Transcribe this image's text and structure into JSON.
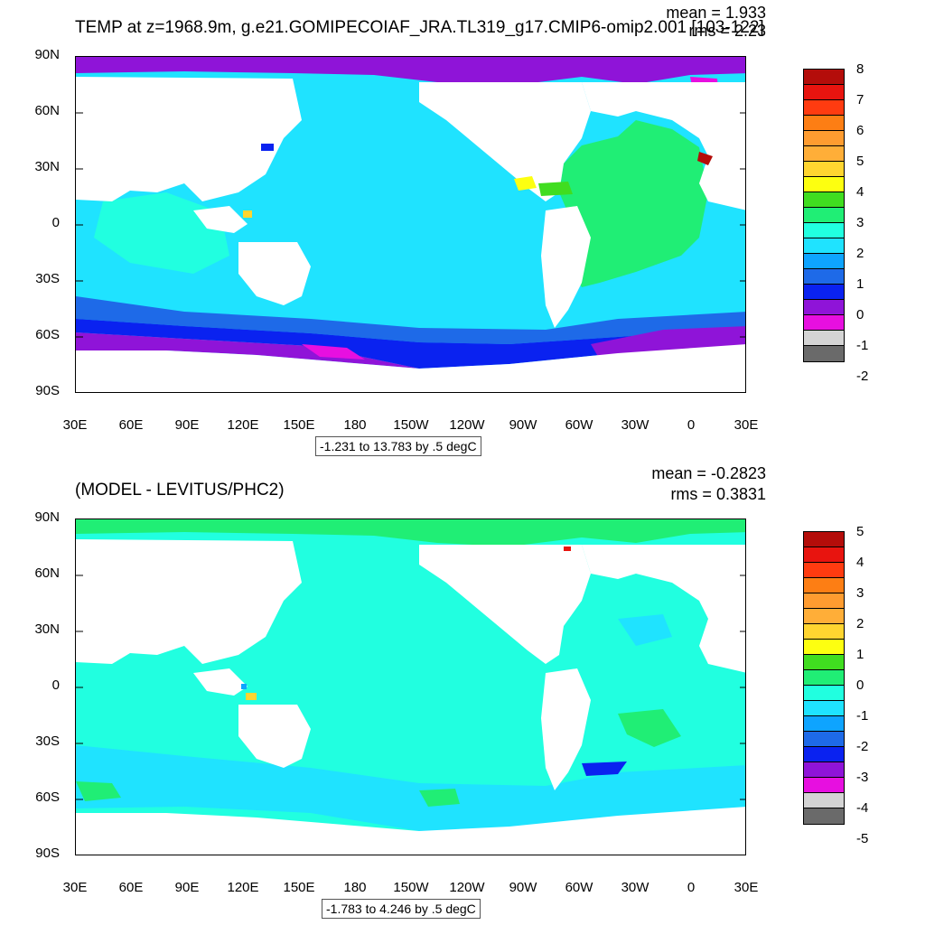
{
  "colors": {
    "land": "#ffffff",
    "ocean_top": "#1fe3ff",
    "ocean_bottom": "#21ffe0",
    "palette": [
      "#6a6a6a",
      "#d4d4d4",
      "#e70fe0",
      "#8f14d8",
      "#0a22f0",
      "#1e6ae8",
      "#0ea4ff",
      "#1fd8ff",
      "#21ffe0",
      "#20ee75",
      "#40dd20",
      "#fdff10",
      "#ffd530",
      "#ffae38",
      "#ff9c30",
      "#fd7e14",
      "#ff3b10",
      "#e8140f",
      "#b40d0a"
    ]
  },
  "top": {
    "title": "TEMP at z=1968.9m, g.e21.GOMIPECOIAF_JRA.TL319_g17.CMIP6-omip2.001 [103-122]",
    "mean_text": "mean = 1.933",
    "rms_text": "rms = 2.23",
    "range_text": "-1.231 to 13.783 by .5 degC",
    "y_ticks": [
      "90N",
      "60N",
      "30N",
      "0",
      "30S",
      "60S",
      "90S"
    ],
    "x_ticks": [
      "30E",
      "60E",
      "90E",
      "120E",
      "150E",
      "180",
      "150W",
      "120W",
      "90W",
      "60W",
      "30W",
      "0",
      "30E"
    ],
    "colorbar_labels": [
      "8",
      "7",
      "6",
      "5",
      "4",
      "3",
      "2",
      "1",
      "0",
      "-1",
      "-2"
    ]
  },
  "bottom": {
    "title": "(MODEL - LEVITUS/PHC2)",
    "mean_text": "mean = -0.2823",
    "rms_text": "rms = 0.3831",
    "range_text": "-1.783 to 4.246 by .5 degC",
    "y_ticks": [
      "90N",
      "60N",
      "30N",
      "0",
      "30S",
      "60S",
      "90S"
    ],
    "x_ticks": [
      "30E",
      "60E",
      "90E",
      "120E",
      "150E",
      "180",
      "150W",
      "120W",
      "90W",
      "60W",
      "30W",
      "0",
      "30E"
    ],
    "colorbar_labels": [
      "5",
      "4",
      "3",
      "2",
      "1",
      "0",
      "-1",
      "-2",
      "-3",
      "-4",
      "-5"
    ]
  }
}
